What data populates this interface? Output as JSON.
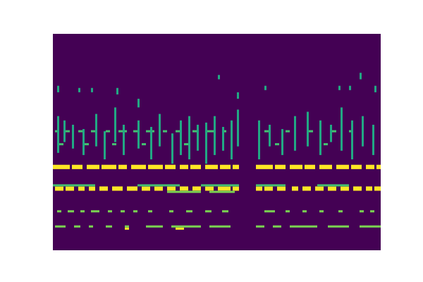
{
  "chart_data": {
    "type": "heatmap",
    "tick_labels": false,
    "xlim": [
      0,
      155
    ],
    "ylim": [
      0,
      100
    ],
    "zlim": [
      0,
      1
    ],
    "cells": [
      [
        0,
        8,
        37.5,
        39.5,
        1
      ],
      [
        9,
        14,
        37.5,
        39.5,
        1
      ],
      [
        16,
        22,
        37.5,
        39.5,
        1
      ],
      [
        23,
        30,
        37.5,
        39.5,
        1
      ],
      [
        31,
        35,
        37.5,
        39.5,
        1
      ],
      [
        37,
        44,
        37.5,
        39.5,
        1
      ],
      [
        45,
        52,
        37.5,
        39.5,
        1
      ],
      [
        53,
        58,
        37.5,
        39.5,
        1
      ],
      [
        60,
        64,
        37.5,
        39.5,
        1
      ],
      [
        65,
        70,
        37.5,
        39.5,
        1
      ],
      [
        72,
        78,
        37.5,
        39.5,
        1
      ],
      [
        79,
        84,
        37.5,
        39.5,
        1
      ],
      [
        85,
        88,
        37.5,
        39.5,
        1
      ],
      [
        96,
        104,
        37.5,
        39.5,
        1
      ],
      [
        105,
        110,
        37.5,
        39.5,
        1
      ],
      [
        112,
        118,
        37.5,
        39.5,
        1
      ],
      [
        119,
        124,
        37.5,
        39.5,
        1
      ],
      [
        126,
        132,
        37.5,
        39.5,
        1
      ],
      [
        134,
        140,
        37.5,
        39.5,
        1
      ],
      [
        141,
        146,
        37.5,
        39.5,
        1
      ],
      [
        148,
        152,
        37.5,
        39.5,
        1
      ],
      [
        153,
        155,
        37.5,
        39.5,
        1
      ],
      [
        1,
        5,
        27.5,
        29.5,
        1
      ],
      [
        6,
        10,
        27.5,
        29.5,
        1
      ],
      [
        12,
        15,
        27.5,
        29.5,
        1
      ],
      [
        17,
        20,
        27.5,
        29.5,
        1
      ],
      [
        22,
        26,
        27.5,
        29.5,
        1
      ],
      [
        28,
        33,
        27.5,
        29.5,
        1
      ],
      [
        35,
        40,
        27.5,
        29.5,
        1
      ],
      [
        42,
        46,
        27.5,
        29.5,
        1
      ],
      [
        48,
        52,
        27.5,
        29.5,
        1
      ],
      [
        54,
        58,
        27.5,
        29.5,
        1
      ],
      [
        60,
        64,
        27.5,
        29.5,
        1
      ],
      [
        66,
        70,
        27.5,
        29.5,
        1
      ],
      [
        72,
        76,
        27.5,
        29.5,
        1
      ],
      [
        78,
        84,
        27.5,
        29.5,
        1
      ],
      [
        85,
        88,
        27.5,
        29.5,
        1
      ],
      [
        96,
        99,
        27.5,
        29.5,
        1
      ],
      [
        100,
        104,
        27.5,
        29.5,
        1
      ],
      [
        106,
        110,
        27.5,
        29.5,
        1
      ],
      [
        113,
        116,
        27.5,
        29.5,
        1
      ],
      [
        118,
        122,
        27.5,
        29.5,
        1
      ],
      [
        124,
        128,
        27.5,
        29.5,
        1
      ],
      [
        130,
        134,
        27.5,
        29.5,
        1
      ],
      [
        136,
        140,
        27.5,
        29.5,
        1
      ],
      [
        142,
        146,
        27.5,
        29.5,
        1
      ],
      [
        148,
        151,
        27.5,
        29.5,
        1
      ],
      [
        152,
        155,
        27.5,
        29.5,
        1
      ],
      [
        0,
        20,
        29.5,
        30.5,
        0.7
      ],
      [
        40,
        60,
        29.5,
        30.5,
        0.7
      ],
      [
        70,
        88,
        29.5,
        30.5,
        0.7
      ],
      [
        96,
        110,
        29.5,
        30.5,
        0.7
      ],
      [
        125,
        140,
        29.5,
        30.5,
        0.7
      ],
      [
        54,
        70,
        26.5,
        27.5,
        0.8
      ],
      [
        74,
        86,
        26.5,
        27.5,
        0.8
      ],
      [
        2,
        4,
        17.5,
        18.5,
        0.8
      ],
      [
        7,
        10,
        17.5,
        18.5,
        0.8
      ],
      [
        13,
        15,
        17.5,
        18.5,
        0.8
      ],
      [
        18,
        22,
        17.5,
        18.5,
        0.8
      ],
      [
        26,
        28,
        17.5,
        18.5,
        0.8
      ],
      [
        32,
        34,
        17.5,
        18.5,
        0.8
      ],
      [
        38,
        40,
        17.5,
        18.5,
        0.8
      ],
      [
        45,
        47,
        17.5,
        18.5,
        0.8
      ],
      [
        55,
        57,
        17.5,
        18.5,
        0.8
      ],
      [
        63,
        66,
        17.5,
        18.5,
        0.8
      ],
      [
        72,
        75,
        17.5,
        18.5,
        0.8
      ],
      [
        80,
        83,
        17.5,
        18.5,
        0.8
      ],
      [
        100,
        105,
        17.5,
        18.5,
        0.8
      ],
      [
        110,
        112,
        17.5,
        18.5,
        0.8
      ],
      [
        118,
        120,
        17.5,
        18.5,
        0.8
      ],
      [
        126,
        128,
        17.5,
        18.5,
        0.8
      ],
      [
        135,
        137,
        17.5,
        18.5,
        0.8
      ],
      [
        145,
        147,
        17.5,
        18.5,
        0.8
      ],
      [
        150,
        152,
        17.5,
        18.5,
        0.8
      ],
      [
        1,
        6,
        10.5,
        11.5,
        0.8
      ],
      [
        10,
        13,
        10.5,
        11.5,
        0.8
      ],
      [
        17,
        19,
        10.5,
        11.5,
        0.8
      ],
      [
        25,
        28,
        10.5,
        11.5,
        0.8
      ],
      [
        34,
        36,
        10.5,
        11.5,
        0.8
      ],
      [
        44,
        52,
        10.5,
        11.5,
        0.8
      ],
      [
        56,
        70,
        10.5,
        11.5,
        0.8
      ],
      [
        74,
        84,
        10.5,
        11.5,
        0.8
      ],
      [
        96,
        100,
        10.5,
        11.5,
        0.8
      ],
      [
        104,
        108,
        10.5,
        11.5,
        0.8
      ],
      [
        112,
        125,
        10.5,
        11.5,
        0.8
      ],
      [
        130,
        140,
        10.5,
        11.5,
        0.8
      ],
      [
        145,
        155,
        10.5,
        11.5,
        0.8
      ],
      [
        34,
        36,
        9.5,
        10.5,
        1
      ],
      [
        58,
        62,
        9.5,
        10.5,
        1
      ],
      [
        1,
        3,
        54.5,
        55.5,
        0.7
      ],
      [
        6,
        8,
        54.5,
        55.5,
        0.7
      ],
      [
        12,
        14,
        54.5,
        55.5,
        0.7
      ],
      [
        18,
        21,
        54.5,
        55.5,
        0.7
      ],
      [
        25,
        27,
        54.5,
        55.5,
        0.7
      ],
      [
        31,
        35,
        54.5,
        55.5,
        0.7
      ],
      [
        38,
        40,
        54.5,
        55.5,
        0.7
      ],
      [
        44,
        48,
        54.5,
        55.5,
        0.7
      ],
      [
        52,
        54,
        54.5,
        55.5,
        0.7
      ],
      [
        58,
        61,
        54.5,
        55.5,
        0.7
      ],
      [
        66,
        68,
        54.5,
        55.5,
        0.7
      ],
      [
        72,
        76,
        54.5,
        55.5,
        0.7
      ],
      [
        80,
        82,
        54.5,
        55.5,
        0.7
      ],
      [
        100,
        102,
        54.5,
        55.5,
        0.7
      ],
      [
        110,
        112,
        54.5,
        55.5,
        0.7
      ],
      [
        120,
        123,
        54.5,
        55.5,
        0.7
      ],
      [
        132,
        134,
        54.5,
        55.5,
        0.7
      ],
      [
        140,
        142,
        54.5,
        55.5,
        0.7
      ],
      [
        3,
        5,
        48.5,
        49.5,
        0.7
      ],
      [
        15,
        17,
        48.5,
        49.5,
        0.7
      ],
      [
        28,
        30,
        48.5,
        49.5,
        0.7
      ],
      [
        42,
        44,
        48.5,
        49.5,
        0.7
      ],
      [
        62,
        64,
        48.5,
        49.5,
        0.7
      ],
      [
        105,
        107,
        48.5,
        49.5,
        0.7
      ],
      [
        128,
        130,
        48.5,
        49.5,
        0.7
      ],
      [
        2,
        3,
        45,
        62,
        0.6
      ],
      [
        5,
        6,
        50,
        60,
        0.6
      ],
      [
        9,
        10,
        47,
        58,
        0.6
      ],
      [
        14,
        15,
        44,
        56,
        0.6
      ],
      [
        20,
        21,
        48,
        63,
        0.6
      ],
      [
        24,
        25,
        42,
        55,
        0.6
      ],
      [
        29,
        30,
        50,
        66,
        0.6
      ],
      [
        33,
        34,
        44,
        58,
        0.6
      ],
      [
        40,
        41,
        47,
        60,
        0.6
      ],
      [
        46,
        47,
        42,
        57,
        0.6
      ],
      [
        50,
        51,
        48,
        63,
        0.6
      ],
      [
        56,
        57,
        40,
        54,
        0.6
      ],
      [
        60,
        61,
        44,
        60,
        0.6
      ],
      [
        64,
        65,
        42,
        62,
        0.6
      ],
      [
        68,
        69,
        46,
        58,
        0.6
      ],
      [
        72,
        73,
        40,
        59,
        0.6
      ],
      [
        76,
        77,
        44,
        62,
        0.6
      ],
      [
        80,
        81,
        46,
        57,
        0.6
      ],
      [
        84,
        85,
        42,
        60,
        0.6
      ],
      [
        87,
        88,
        48,
        65,
        0.6
      ],
      [
        97,
        98,
        42,
        60,
        0.6
      ],
      [
        102,
        103,
        48,
        58,
        0.6
      ],
      [
        108,
        109,
        44,
        56,
        0.6
      ],
      [
        114,
        115,
        46,
        62,
        0.6
      ],
      [
        120,
        121,
        48,
        64,
        0.6
      ],
      [
        126,
        127,
        44,
        60,
        0.6
      ],
      [
        131,
        132,
        50,
        58,
        0.6
      ],
      [
        136,
        137,
        46,
        66,
        0.6
      ],
      [
        141,
        142,
        42,
        60,
        0.6
      ],
      [
        146,
        147,
        48,
        62,
        0.6
      ],
      [
        151,
        152,
        44,
        58,
        0.6
      ],
      [
        2,
        3,
        73,
        76,
        0.6
      ],
      [
        12,
        13,
        73,
        75,
        0.6
      ],
      [
        18,
        19,
        73,
        75,
        0.6
      ],
      [
        30,
        31,
        72,
        75,
        0.6
      ],
      [
        40,
        41,
        66,
        70,
        0.6
      ],
      [
        87,
        88,
        70,
        73,
        0.6
      ],
      [
        100,
        101,
        74,
        76,
        0.6
      ],
      [
        135,
        136,
        74,
        76,
        0.6
      ],
      [
        140,
        141,
        74,
        76,
        0.6
      ],
      [
        145,
        146,
        79,
        82,
        0.6
      ],
      [
        152,
        153,
        73,
        76,
        0.6
      ],
      [
        78,
        79,
        79,
        81,
        0.6
      ]
    ]
  }
}
